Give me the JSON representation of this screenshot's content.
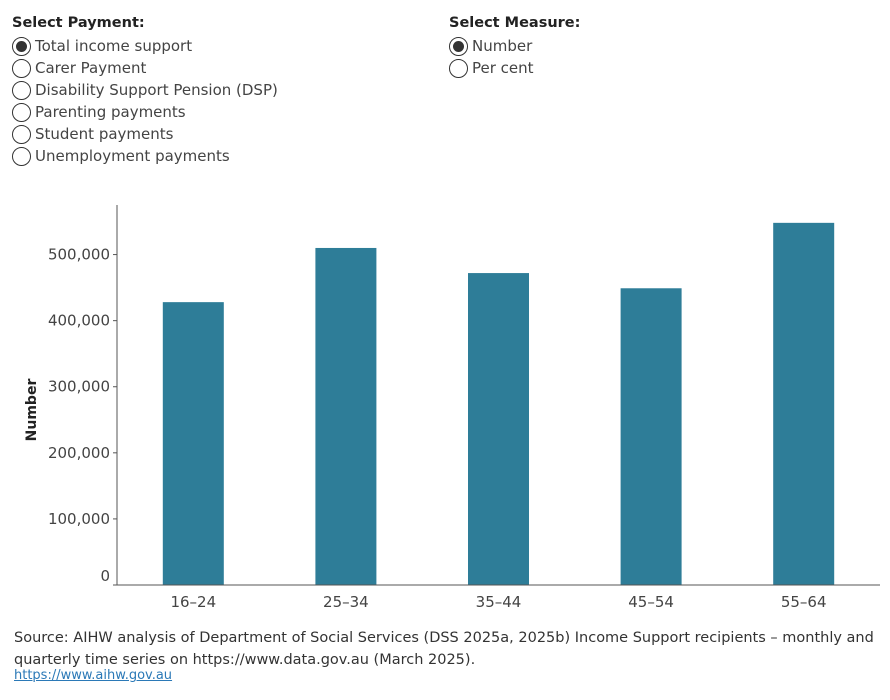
{
  "payment_filter": {
    "title": "Select Payment:",
    "options": [
      {
        "label": "Total income support",
        "selected": true
      },
      {
        "label": "Carer Payment",
        "selected": false
      },
      {
        "label": "Disability Support Pension (DSP)",
        "selected": false
      },
      {
        "label": "Parenting payments",
        "selected": false
      },
      {
        "label": "Student payments",
        "selected": false
      },
      {
        "label": "Unemployment payments",
        "selected": false
      }
    ]
  },
  "measure_filter": {
    "title": "Select Measure:",
    "options": [
      {
        "label": "Number",
        "selected": true
      },
      {
        "label": "Per cent",
        "selected": false
      }
    ]
  },
  "chart_data": {
    "type": "bar",
    "title": "",
    "xlabel": "",
    "ylabel": "Number",
    "categories": [
      "16–24",
      "25–34",
      "35–44",
      "45–54",
      "55–64"
    ],
    "values": [
      428000,
      510000,
      472000,
      449000,
      548000
    ],
    "ylim": [
      0,
      575000
    ],
    "yticks": [
      0,
      100000,
      200000,
      300000,
      400000,
      500000
    ],
    "ytick_labels": [
      "0",
      "100,000",
      "200,000",
      "300,000",
      "400,000",
      "500,000"
    ],
    "bar_color": "#2e7d98",
    "grid": false
  },
  "footer": {
    "source": "Source: AIHW analysis of Department of Social Services (DSS 2025a, 2025b) Income Support recipients – monthly and quarterly time series on https://www.data.gov.au (March 2025).",
    "link": "https://www.aihw.gov.au"
  }
}
